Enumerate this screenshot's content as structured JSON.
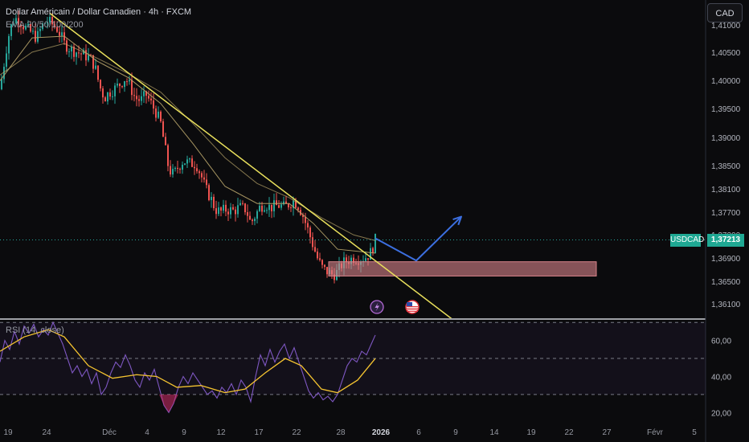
{
  "header": {
    "title": "Dollar Américain / Dollar Canadien · 4h · FXCM",
    "indicator": "EMA 20/50/100/200"
  },
  "currency_button": "CAD",
  "price_tag": {
    "symbol": "USDCAD",
    "value": "1,37213"
  },
  "rsi_label": "RSI (14, close)",
  "colors": {
    "up": "#26a69a",
    "down": "#ef5350",
    "trendline": "#e9e05c",
    "ema": "#b8a46a",
    "projection": "#3c6fe0",
    "zone": "#d9848a",
    "rsi": "#7e57c2",
    "rsi_ma": "#f5c430"
  },
  "chart_data": [
    {
      "type": "candlestick",
      "title": "Dollar Américain / Dollar Canadien · 4h · FXCM",
      "y_ticks": [
        "1,41000",
        "1,40500",
        "1,40000",
        "1,39500",
        "1,39000",
        "1,38500",
        "1,38100",
        "1,37700",
        "1,37300",
        "1,36900",
        "1,36500",
        "1,36100"
      ],
      "ylim": [
        1.3583,
        1.4133
      ],
      "x_ticks": [
        "19",
        "24",
        "Déc",
        "4",
        "9",
        "12",
        "17",
        "22",
        "28",
        "2026",
        "6",
        "9",
        "14",
        "19",
        "22",
        "27",
        "Févr",
        "5"
      ],
      "last_price": 1.37213,
      "close_path": [
        {
          "t": 0,
          "v": 1.3985
        },
        {
          "t": 5,
          "v": 1.403
        },
        {
          "t": 10,
          "v": 1.4075
        },
        {
          "t": 16,
          "v": 1.4105
        },
        {
          "t": 22,
          "v": 1.411
        },
        {
          "t": 30,
          "v": 1.4095
        },
        {
          "t": 38,
          "v": 1.4085
        },
        {
          "t": 46,
          "v": 1.4075
        },
        {
          "t": 52,
          "v": 1.4095
        },
        {
          "t": 58,
          "v": 1.4105
        },
        {
          "t": 64,
          "v": 1.41
        },
        {
          "t": 72,
          "v": 1.409
        },
        {
          "t": 80,
          "v": 1.4065
        },
        {
          "t": 88,
          "v": 1.4055
        },
        {
          "t": 96,
          "v": 1.405
        },
        {
          "t": 104,
          "v": 1.4045
        },
        {
          "t": 112,
          "v": 1.404
        },
        {
          "t": 118,
          "v": 1.4025
        },
        {
          "t": 124,
          "v": 1.399
        },
        {
          "t": 130,
          "v": 1.397
        },
        {
          "t": 136,
          "v": 1.398
        },
        {
          "t": 142,
          "v": 1.3985
        },
        {
          "t": 150,
          "v": 1.3995
        },
        {
          "t": 156,
          "v": 1.4005
        },
        {
          "t": 162,
          "v": 1.399
        },
        {
          "t": 168,
          "v": 1.397
        },
        {
          "t": 175,
          "v": 1.3965
        },
        {
          "t": 182,
          "v": 1.3975
        },
        {
          "t": 188,
          "v": 1.396
        },
        {
          "t": 194,
          "v": 1.3945
        },
        {
          "t": 200,
          "v": 1.3925
        },
        {
          "t": 205,
          "v": 1.3885
        },
        {
          "t": 210,
          "v": 1.3845
        },
        {
          "t": 216,
          "v": 1.3835
        },
        {
          "t": 222,
          "v": 1.385
        },
        {
          "t": 228,
          "v": 1.386
        },
        {
          "t": 236,
          "v": 1.3855
        },
        {
          "t": 244,
          "v": 1.3855
        },
        {
          "t": 250,
          "v": 1.3835
        },
        {
          "t": 256,
          "v": 1.381
        },
        {
          "t": 262,
          "v": 1.3795
        },
        {
          "t": 268,
          "v": 1.3775
        },
        {
          "t": 274,
          "v": 1.377
        },
        {
          "t": 282,
          "v": 1.3775
        },
        {
          "t": 290,
          "v": 1.3772
        },
        {
          "t": 298,
          "v": 1.3778
        },
        {
          "t": 306,
          "v": 1.3775
        },
        {
          "t": 312,
          "v": 1.375
        },
        {
          "t": 318,
          "v": 1.3765
        },
        {
          "t": 324,
          "v": 1.378
        },
        {
          "t": 330,
          "v": 1.3785
        },
        {
          "t": 336,
          "v": 1.3778
        },
        {
          "t": 342,
          "v": 1.378
        },
        {
          "t": 348,
          "v": 1.3782
        },
        {
          "t": 354,
          "v": 1.3778
        },
        {
          "t": 360,
          "v": 1.3785
        },
        {
          "t": 366,
          "v": 1.379
        },
        {
          "t": 372,
          "v": 1.378
        },
        {
          "t": 378,
          "v": 1.376
        },
        {
          "t": 384,
          "v": 1.3735
        },
        {
          "t": 390,
          "v": 1.371
        },
        {
          "t": 396,
          "v": 1.3685
        },
        {
          "t": 402,
          "v": 1.367
        },
        {
          "t": 408,
          "v": 1.3665
        },
        {
          "t": 414,
          "v": 1.366
        },
        {
          "t": 420,
          "v": 1.3665
        },
        {
          "t": 426,
          "v": 1.368
        },
        {
          "t": 432,
          "v": 1.3685
        },
        {
          "t": 440,
          "v": 1.369
        },
        {
          "t": 448,
          "v": 1.3688
        },
        {
          "t": 456,
          "v": 1.3692
        },
        {
          "t": 462,
          "v": 1.37
        },
        {
          "t": 467,
          "v": 1.3721
        }
      ],
      "ema_lines": [
        {
          "name": "EMA 20",
          "points": [
            {
              "t": 0,
              "v": 1.4
            },
            {
              "t": 40,
              "v": 1.4075
            },
            {
              "t": 80,
              "v": 1.4078
            },
            {
              "t": 120,
              "v": 1.4035
            },
            {
              "t": 160,
              "v": 1.4005
            },
            {
              "t": 200,
              "v": 1.396
            },
            {
              "t": 240,
              "v": 1.389
            },
            {
              "t": 280,
              "v": 1.3815
            },
            {
              "t": 320,
              "v": 1.3785
            },
            {
              "t": 360,
              "v": 1.3785
            },
            {
              "t": 390,
              "v": 1.375
            },
            {
              "t": 420,
              "v": 1.3705
            },
            {
              "t": 467,
              "v": 1.3698
            }
          ]
        },
        {
          "name": "EMA 50",
          "points": [
            {
              "t": 0,
              "v": 1.401
            },
            {
              "t": 40,
              "v": 1.405
            },
            {
              "t": 80,
              "v": 1.4065
            },
            {
              "t": 120,
              "v": 1.404
            },
            {
              "t": 160,
              "v": 1.4012
            },
            {
              "t": 200,
              "v": 1.398
            },
            {
              "t": 240,
              "v": 1.3925
            },
            {
              "t": 280,
              "v": 1.3865
            },
            {
              "t": 320,
              "v": 1.382
            },
            {
              "t": 360,
              "v": 1.3795
            },
            {
              "t": 400,
              "v": 1.376
            },
            {
              "t": 440,
              "v": 1.373
            },
            {
              "t": 467,
              "v": 1.372
            }
          ]
        }
      ],
      "trendline": {
        "from": {
          "t": 62,
          "v": 1.4118
        },
        "to": {
          "t": 565,
          "v": 1.358
        }
      },
      "demand_zone": {
        "t_start": 409,
        "t_end": 742,
        "v_low": 1.3658,
        "v_high": 1.3683
      },
      "projection_path": [
        {
          "t": 467,
          "v": 1.3724
        },
        {
          "t": 518,
          "v": 1.3685
        },
        {
          "t": 574,
          "v": 1.3762
        }
      ],
      "event_markers": [
        "lightning",
        "us-flag"
      ]
    },
    {
      "type": "line",
      "title": "RSI (14, close)",
      "y_ticks": [
        "60,00",
        "40,00",
        "20,00"
      ],
      "ylim": [
        17,
        71
      ],
      "guide_levels": [
        70,
        50,
        30
      ],
      "series": [
        {
          "name": "RSI",
          "points": [
            {
              "t": 0,
              "v": 48
            },
            {
              "t": 6,
              "v": 60
            },
            {
              "t": 12,
              "v": 55
            },
            {
              "t": 18,
              "v": 65
            },
            {
              "t": 24,
              "v": 58
            },
            {
              "t": 30,
              "v": 68
            },
            {
              "t": 36,
              "v": 64
            },
            {
              "t": 42,
              "v": 69
            },
            {
              "t": 48,
              "v": 62
            },
            {
              "t": 54,
              "v": 66
            },
            {
              "t": 60,
              "v": 63
            },
            {
              "t": 66,
              "v": 70
            },
            {
              "t": 72,
              "v": 64
            },
            {
              "t": 78,
              "v": 58
            },
            {
              "t": 84,
              "v": 50
            },
            {
              "t": 90,
              "v": 42
            },
            {
              "t": 96,
              "v": 46
            },
            {
              "t": 102,
              "v": 40
            },
            {
              "t": 108,
              "v": 44
            },
            {
              "t": 114,
              "v": 36
            },
            {
              "t": 120,
              "v": 42
            },
            {
              "t": 126,
              "v": 30
            },
            {
              "t": 132,
              "v": 34
            },
            {
              "t": 138,
              "v": 42
            },
            {
              "t": 144,
              "v": 48
            },
            {
              "t": 150,
              "v": 45
            },
            {
              "t": 156,
              "v": 52
            },
            {
              "t": 162,
              "v": 46
            },
            {
              "t": 168,
              "v": 38
            },
            {
              "t": 174,
              "v": 34
            },
            {
              "t": 180,
              "v": 42
            },
            {
              "t": 186,
              "v": 38
            },
            {
              "t": 192,
              "v": 44
            },
            {
              "t": 198,
              "v": 34
            },
            {
              "t": 204,
              "v": 24
            },
            {
              "t": 210,
              "v": 20
            },
            {
              "t": 216,
              "v": 25
            },
            {
              "t": 222,
              "v": 34
            },
            {
              "t": 228,
              "v": 40
            },
            {
              "t": 234,
              "v": 36
            },
            {
              "t": 240,
              "v": 42
            },
            {
              "t": 246,
              "v": 38
            },
            {
              "t": 252,
              "v": 34
            },
            {
              "t": 258,
              "v": 30
            },
            {
              "t": 264,
              "v": 32
            },
            {
              "t": 270,
              "v": 28
            },
            {
              "t": 276,
              "v": 34
            },
            {
              "t": 282,
              "v": 31
            },
            {
              "t": 288,
              "v": 36
            },
            {
              "t": 294,
              "v": 30
            },
            {
              "t": 300,
              "v": 38
            },
            {
              "t": 306,
              "v": 34
            },
            {
              "t": 312,
              "v": 26
            },
            {
              "t": 318,
              "v": 40
            },
            {
              "t": 324,
              "v": 52
            },
            {
              "t": 330,
              "v": 46
            },
            {
              "t": 336,
              "v": 55
            },
            {
              "t": 342,
              "v": 48
            },
            {
              "t": 348,
              "v": 54
            },
            {
              "t": 354,
              "v": 58
            },
            {
              "t": 360,
              "v": 50
            },
            {
              "t": 366,
              "v": 56
            },
            {
              "t": 372,
              "v": 48
            },
            {
              "t": 378,
              "v": 40
            },
            {
              "t": 384,
              "v": 32
            },
            {
              "t": 390,
              "v": 28
            },
            {
              "t": 396,
              "v": 31
            },
            {
              "t": 402,
              "v": 27
            },
            {
              "t": 408,
              "v": 29
            },
            {
              "t": 414,
              "v": 26
            },
            {
              "t": 420,
              "v": 30
            },
            {
              "t": 426,
              "v": 38
            },
            {
              "t": 432,
              "v": 46
            },
            {
              "t": 438,
              "v": 50
            },
            {
              "t": 444,
              "v": 48
            },
            {
              "t": 450,
              "v": 54
            },
            {
              "t": 456,
              "v": 52
            },
            {
              "t": 462,
              "v": 58
            },
            {
              "t": 467,
              "v": 63
            }
          ]
        },
        {
          "name": "RSI MA",
          "points": [
            {
              "t": 0,
              "v": 54
            },
            {
              "t": 30,
              "v": 62
            },
            {
              "t": 60,
              "v": 66
            },
            {
              "t": 80,
              "v": 62
            },
            {
              "t": 110,
              "v": 46
            },
            {
              "t": 140,
              "v": 39
            },
            {
              "t": 170,
              "v": 41
            },
            {
              "t": 195,
              "v": 40
            },
            {
              "t": 220,
              "v": 34
            },
            {
              "t": 250,
              "v": 35
            },
            {
              "t": 280,
              "v": 31
            },
            {
              "t": 305,
              "v": 33
            },
            {
              "t": 330,
              "v": 42
            },
            {
              "t": 355,
              "v": 50
            },
            {
              "t": 375,
              "v": 46
            },
            {
              "t": 400,
              "v": 33
            },
            {
              "t": 420,
              "v": 31
            },
            {
              "t": 445,
              "v": 38
            },
            {
              "t": 467,
              "v": 50
            }
          ]
        }
      ]
    }
  ]
}
